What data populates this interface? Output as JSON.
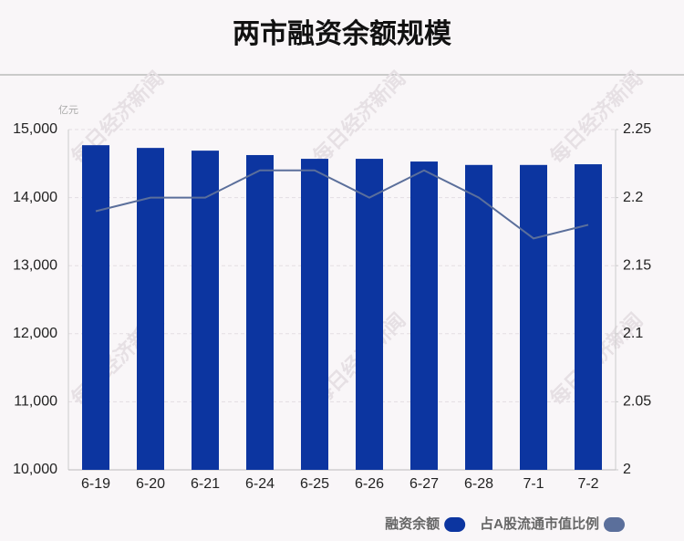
{
  "chart_data": {
    "type": "bar",
    "title": "两市融资余额规模",
    "y_unit": "亿元",
    "watermark": "每日经济新闻",
    "categories": [
      "6-19",
      "6-20",
      "6-21",
      "6-24",
      "6-25",
      "6-26",
      "6-27",
      "6-28",
      "7-1",
      "7-2"
    ],
    "series": [
      {
        "name": "融资余额",
        "type": "bar",
        "color": "#0c35a0",
        "axis": "y",
        "values": [
          14770,
          14730,
          14690,
          14625,
          14570,
          14570,
          14530,
          14480,
          14480,
          14490
        ]
      },
      {
        "name": "占A股流通市值比例",
        "type": "line",
        "color": "#5b6f9b",
        "axis": "y2",
        "values": [
          2.19,
          2.2,
          2.2,
          2.22,
          2.22,
          2.2,
          2.22,
          2.2,
          2.17,
          2.18
        ]
      }
    ],
    "ylim": [
      10000,
      15000
    ],
    "yticks": [
      {
        "value": 10000,
        "label": "10,000"
      },
      {
        "value": 11000,
        "label": "11,000"
      },
      {
        "value": 12000,
        "label": "12,000"
      },
      {
        "value": 13000,
        "label": "13,000"
      },
      {
        "value": 14000,
        "label": "14,000"
      },
      {
        "value": 15000,
        "label": "15,000"
      }
    ],
    "y2lim": [
      2,
      2.25
    ],
    "y2ticks": [
      2,
      2.05,
      2.1,
      2.15,
      2.2,
      2.25
    ],
    "grid": true,
    "legend": "bottom-right"
  }
}
